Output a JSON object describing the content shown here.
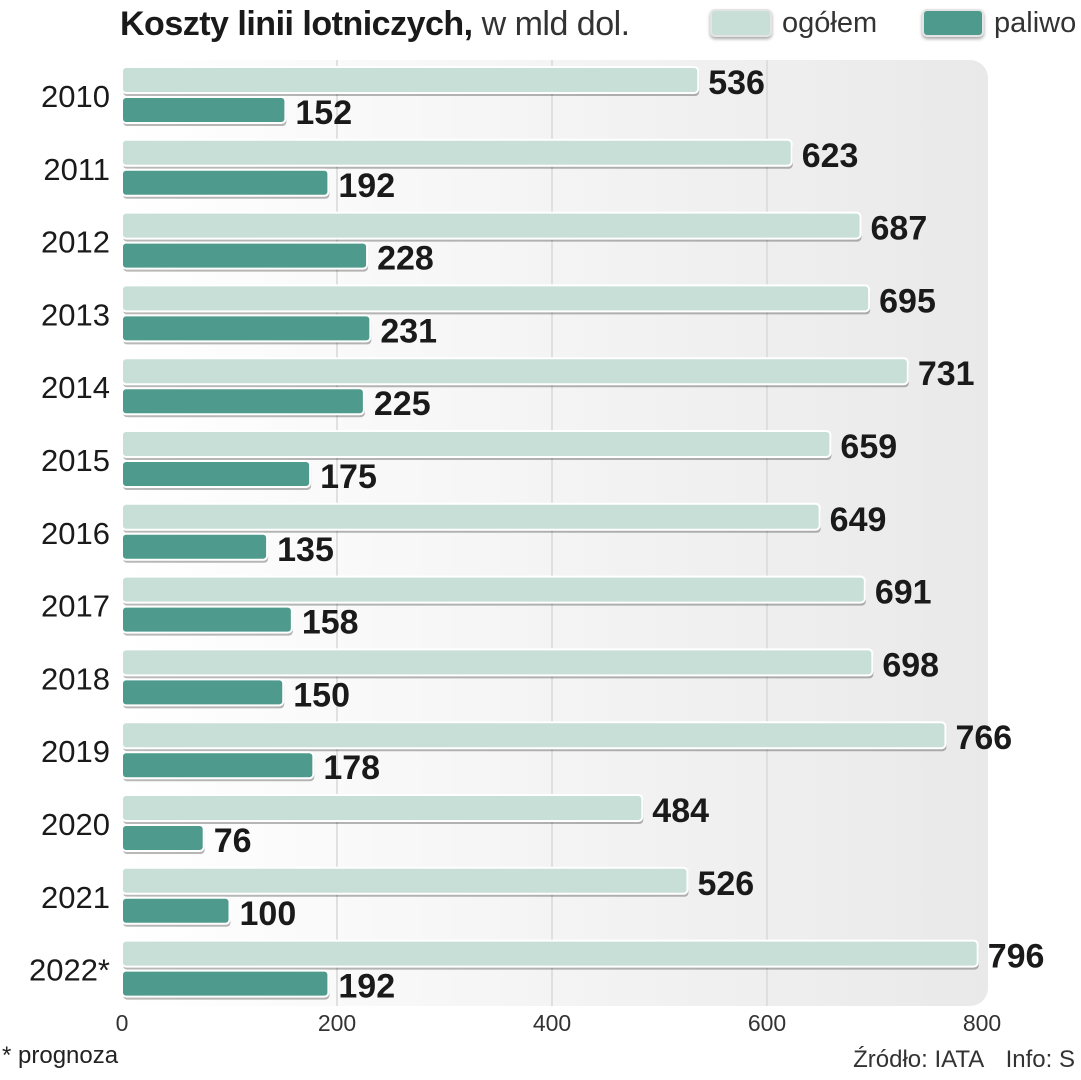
{
  "title": {
    "main": "Koszty linii lotniczych,",
    "unit": "w mld dol."
  },
  "legend": {
    "total": "ogółem",
    "fuel": "paliwo"
  },
  "colors": {
    "total": "#c8dfd8",
    "fuel": "#4e9b8d",
    "panel": "#eeeeee"
  },
  "chart_data": {
    "type": "bar",
    "orientation": "horizontal",
    "title": "Koszty linii lotniczych, w mld dol.",
    "categories": [
      "2010",
      "2011",
      "2012",
      "2013",
      "2014",
      "2015",
      "2016",
      "2017",
      "2018",
      "2019",
      "2020",
      "2021",
      "2022*"
    ],
    "series": [
      {
        "name": "ogółem",
        "values": [
          536,
          623,
          687,
          695,
          731,
          659,
          649,
          691,
          698,
          766,
          484,
          526,
          796
        ]
      },
      {
        "name": "paliwo",
        "values": [
          152,
          192,
          228,
          231,
          225,
          175,
          135,
          158,
          150,
          178,
          76,
          100,
          192
        ]
      }
    ],
    "xlim": [
      0,
      800
    ],
    "xticks": [
      "0",
      "200",
      "400",
      "600",
      "800"
    ],
    "grid": true,
    "legend_position": "top-right"
  },
  "footnote": "* prognoza",
  "source": {
    "source_text": "Źródło: IATA",
    "info_text": "Info: S"
  }
}
